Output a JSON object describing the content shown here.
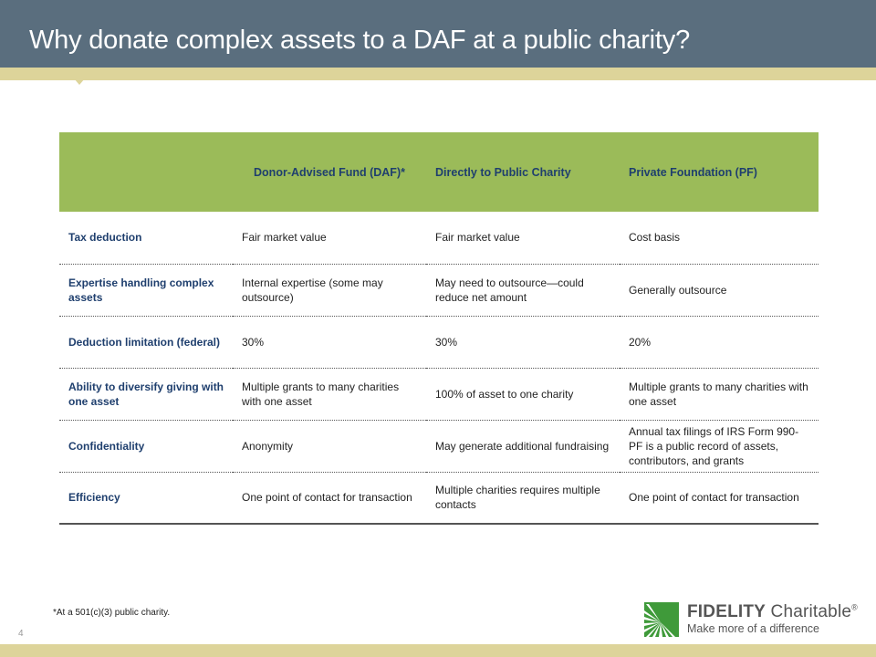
{
  "slide": {
    "title": "Why donate complex assets to a DAF at a public charity?",
    "page_number": "4",
    "footnote": "*At a 501(c)(3) public charity."
  },
  "table": {
    "headers": [
      "",
      "Donor-Advised Fund (DAF)*",
      "Directly to Public Charity",
      "Private Foundation (PF)"
    ],
    "rows": [
      {
        "label": "Tax deduction",
        "cells": [
          "Fair market value",
          "Fair market value",
          "Cost basis"
        ]
      },
      {
        "label": "Expertise handling complex assets",
        "cells": [
          "Internal expertise (some may outsource)",
          "May need to outsource—could reduce net amount",
          "Generally outsource"
        ]
      },
      {
        "label": "Deduction limitation (federal)",
        "cells": [
          "30%",
          "30%",
          "20%"
        ]
      },
      {
        "label": "Ability to diversify giving with one asset",
        "cells": [
          "Multiple grants to many charities with one asset",
          "100% of asset to one charity",
          "Multiple grants to many charities with one asset"
        ]
      },
      {
        "label": "Confidentiality",
        "cells": [
          "Anonymity",
          "May generate additional fundraising",
          "Annual tax filings of IRS Form 990-PF is a public record of assets, contributors, and grants"
        ]
      },
      {
        "label": "Efficiency",
        "cells": [
          "One point of contact for transaction",
          "Multiple charities requires multiple contacts",
          "One point of contact for transaction"
        ]
      }
    ]
  },
  "logo": {
    "name_bold": "FIDELITY",
    "name_regular": "Charitable",
    "trademark": "®",
    "tagline": "Make more of a difference"
  },
  "colors": {
    "title_bar": "#5a6e7e",
    "accent_gold": "#ddd49a",
    "header_green": "#9bbb59",
    "label_blue": "#1f3f6e",
    "logo_green": "#3f9a3a"
  }
}
